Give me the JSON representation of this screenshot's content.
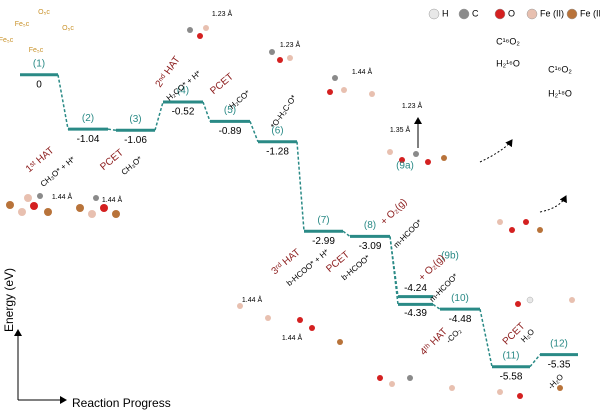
{
  "chart_data": {
    "type": "energy_levels",
    "ylabel": "Energy (eV)",
    "xlabel": "Reaction Progress",
    "ylim": [
      -5.93,
      0.76
    ],
    "color": "#2a8a86",
    "legend": [
      "H",
      "C",
      "O",
      "Fe (II)",
      "Fe (III)"
    ],
    "legend_colors": [
      "#e8e8e8",
      "#8a8a8a",
      "#d42020",
      "#e8c0b0",
      "#b8733a"
    ],
    "categories": [
      "(1)",
      "(2)",
      "(3)",
      "(4)",
      "(5)",
      "(6)",
      "(7)",
      "(8)",
      "(9a)",
      "(9b)",
      "(10)",
      "(11)",
      "(12)"
    ],
    "values": [
      0,
      -1.04,
      -1.06,
      -0.52,
      -0.89,
      -1.28,
      -2.99,
      -3.09,
      -4.24,
      -4.39,
      -4.48,
      -5.58,
      -5.35
    ],
    "annotations": [
      "1ˢᵗ HAT",
      "CH₃O* + H*",
      "PCET",
      "CH₃O*",
      "2ⁿᵈ HAT",
      "H₂CO* + H*",
      "PCET",
      "H₂CO*",
      "*O-H₂C-O*",
      "3ʳᵈ HAT",
      "b-HCOO* + H*",
      "PCET",
      "b-HCOO*",
      "+ O₂(g)",
      "m-HCOO*",
      "+ O₂(g)",
      "m-HCOO*",
      "4ᵗʰ HAT",
      "-CO₂",
      "PCET",
      "H₂O",
      "-H₂O",
      "C¹⁶O₂",
      "H₂¹⁶O",
      "C¹⁶O₂",
      "H₂¹⁸O",
      "1.23 Å",
      "1.23 Å",
      "1.44 Å",
      "1.44 Å",
      "1.44 Å",
      "1.35 Å",
      "1.23 Å",
      "1.44 Å",
      "1.44 Å",
      "O₅c",
      "O₅c",
      "Fe₅c",
      "Fe₅c",
      "Fe₅c"
    ]
  }
}
